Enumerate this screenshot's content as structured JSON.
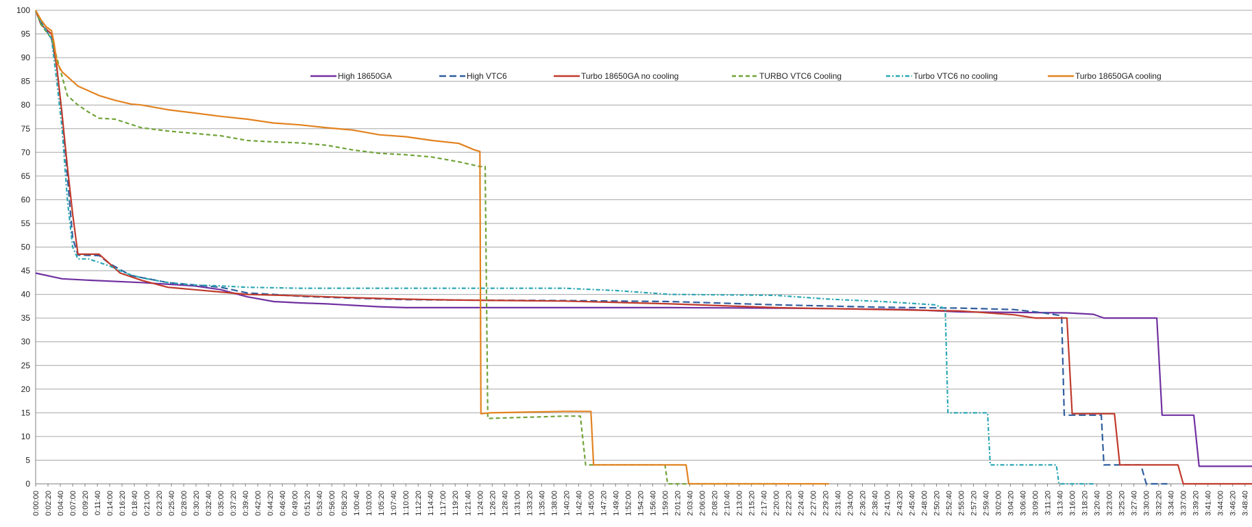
{
  "chart_data": {
    "type": "line",
    "title": "",
    "xlabel": "",
    "ylabel": "",
    "grid": true,
    "legend_position": "top-center",
    "ylim": [
      0,
      100
    ],
    "y_ticks": [
      0,
      5,
      10,
      15,
      20,
      25,
      30,
      35,
      40,
      45,
      50,
      55,
      60,
      65,
      70,
      75,
      80,
      85,
      90,
      95,
      100
    ],
    "x_unit": "minutes",
    "xlim": [
      0,
      230
    ],
    "x_tick_labels": [
      "0:00:00",
      "0:02:20",
      "0:04:40",
      "0:07:00",
      "0:09:20",
      "0:11:40",
      "0:14:00",
      "0:16:20",
      "0:18:40",
      "0:21:00",
      "0:23:20",
      "0:25:40",
      "0:28:00",
      "0:30:20",
      "0:32:40",
      "0:35:00",
      "0:37:20",
      "0:39:40",
      "0:42:00",
      "0:44:20",
      "0:46:40",
      "0:49:00",
      "0:51:20",
      "0:53:40",
      "0:56:00",
      "0:58:20",
      "1:00:40",
      "1:03:00",
      "1:05:20",
      "1:07:40",
      "1:10:00",
      "1:12:20",
      "1:14:40",
      "1:17:00",
      "1:19:20",
      "1:21:40",
      "1:24:00",
      "1:26:20",
      "1:28:40",
      "1:31:00",
      "1:33:20",
      "1:35:40",
      "1:38:00",
      "1:40:20",
      "1:42:40",
      "1:45:00",
      "1:47:20",
      "1:49:40",
      "1:52:00",
      "1:54:20",
      "1:56:40",
      "1:59:00",
      "2:01:20",
      "2:03:40",
      "2:06:00",
      "2:08:20",
      "2:10:40",
      "2:13:00",
      "2:15:20",
      "2:17:40",
      "2:20:00",
      "2:22:20",
      "2:24:40",
      "2:27:00",
      "2:29:20",
      "2:31:40",
      "2:34:00",
      "2:36:20",
      "2:38:40",
      "2:41:00",
      "2:43:20",
      "2:45:40",
      "2:48:00",
      "2:50:20",
      "2:52:40",
      "2:55:00",
      "2:57:20",
      "2:59:40",
      "3:02:00",
      "3:04:20",
      "3:06:40",
      "3:09:00",
      "3:11:20",
      "3:13:40",
      "3:16:00",
      "3:18:20",
      "3:20:40",
      "3:23:00",
      "3:25:20",
      "3:27:40",
      "3:30:00",
      "3:32:20",
      "3:34:40",
      "3:37:00",
      "3:39:20",
      "3:41:40",
      "3:44:00",
      "3:46:20",
      "3:48:40"
    ],
    "series": [
      {
        "name": "High 18650GA",
        "color": "#7030a0",
        "dash": "solid",
        "points": [
          [
            0,
            44.5
          ],
          [
            5,
            43.3
          ],
          [
            10,
            43
          ],
          [
            20,
            42.5
          ],
          [
            30,
            41.8
          ],
          [
            35,
            41
          ],
          [
            40,
            39.5
          ],
          [
            45,
            38.5
          ],
          [
            50,
            38.2
          ],
          [
            55,
            38
          ],
          [
            60,
            37.7
          ],
          [
            65,
            37.4
          ],
          [
            70,
            37.2
          ],
          [
            80,
            37.2
          ],
          [
            100,
            37.2
          ],
          [
            120,
            37.2
          ],
          [
            140,
            37.1
          ],
          [
            150,
            37
          ],
          [
            165,
            36.8
          ],
          [
            175,
            36.3
          ],
          [
            185,
            36.2
          ],
          [
            195,
            36.1
          ],
          [
            200,
            35.8
          ],
          [
            202,
            35
          ],
          [
            212,
            35
          ],
          [
            213,
            14.5
          ],
          [
            219,
            14.5
          ],
          [
            220,
            3.7
          ],
          [
            230,
            3.7
          ]
        ]
      },
      {
        "name": "High VTC6",
        "color": "#2e5d9e",
        "dash": "long",
        "points": [
          [
            0,
            100
          ],
          [
            1,
            97.5
          ],
          [
            3,
            94
          ],
          [
            4,
            88
          ],
          [
            5,
            78
          ],
          [
            6,
            65
          ],
          [
            7,
            52
          ],
          [
            8,
            48.3
          ],
          [
            12,
            48.2
          ],
          [
            14,
            46.5
          ],
          [
            18,
            44
          ],
          [
            25,
            42.5
          ],
          [
            35,
            41.5
          ],
          [
            40,
            40.3
          ],
          [
            45,
            40
          ],
          [
            50,
            39.6
          ],
          [
            60,
            39.2
          ],
          [
            70,
            38.9
          ],
          [
            80,
            38.8
          ],
          [
            100,
            38.7
          ],
          [
            120,
            38.5
          ],
          [
            140,
            37.8
          ],
          [
            160,
            37.3
          ],
          [
            175,
            37.1
          ],
          [
            185,
            36.8
          ],
          [
            190,
            36.2
          ],
          [
            194,
            35.5
          ],
          [
            194.5,
            14.5
          ],
          [
            201.5,
            14.5
          ],
          [
            202,
            4
          ],
          [
            209,
            4
          ],
          [
            210,
            0
          ],
          [
            214,
            0
          ]
        ]
      },
      {
        "name": "Turbo 18650GA no cooling",
        "color": "#c0392b",
        "dash": "solid",
        "points": [
          [
            0,
            100
          ],
          [
            1,
            97
          ],
          [
            3,
            95
          ],
          [
            4,
            88
          ],
          [
            5,
            78
          ],
          [
            6,
            67
          ],
          [
            7,
            57
          ],
          [
            8,
            48.5
          ],
          [
            12,
            48.5
          ],
          [
            14,
            46.5
          ],
          [
            16,
            44.5
          ],
          [
            20,
            43
          ],
          [
            25,
            41.5
          ],
          [
            30,
            41
          ],
          [
            35,
            40.5
          ],
          [
            40,
            40
          ],
          [
            50,
            39.7
          ],
          [
            60,
            39.3
          ],
          [
            70,
            39
          ],
          [
            80,
            38.8
          ],
          [
            100,
            38.6
          ],
          [
            120,
            38
          ],
          [
            140,
            37.2
          ],
          [
            160,
            36.8
          ],
          [
            175,
            36.5
          ],
          [
            185,
            35.7
          ],
          [
            189,
            35
          ],
          [
            195,
            35
          ],
          [
            196,
            14.8
          ],
          [
            204,
            14.8
          ],
          [
            205,
            4
          ],
          [
            216,
            4
          ],
          [
            217,
            0
          ],
          [
            230,
            0
          ]
        ]
      },
      {
        "name": "TURBO VTC6 Cooling",
        "color": "#70a338",
        "dash": "dashed",
        "points": [
          [
            0,
            100
          ],
          [
            1,
            97
          ],
          [
            3,
            94
          ],
          [
            4,
            90
          ],
          [
            5,
            86
          ],
          [
            6,
            82
          ],
          [
            8,
            80
          ],
          [
            10,
            78.5
          ],
          [
            12,
            77.2
          ],
          [
            15,
            77
          ],
          [
            20,
            75.2
          ],
          [
            25,
            74.5
          ],
          [
            30,
            74
          ],
          [
            35,
            73.5
          ],
          [
            40,
            72.5
          ],
          [
            45,
            72.2
          ],
          [
            50,
            72
          ],
          [
            55,
            71.5
          ],
          [
            60,
            70.5
          ],
          [
            65,
            69.8
          ],
          [
            70,
            69.5
          ],
          [
            75,
            69
          ],
          [
            80,
            68
          ],
          [
            84,
            67
          ],
          [
            85,
            67
          ],
          [
            85.5,
            13.8
          ],
          [
            100,
            14.3
          ],
          [
            103,
            14.3
          ],
          [
            104,
            4
          ],
          [
            119,
            4
          ],
          [
            119.5,
            0
          ],
          [
            140,
            0
          ]
        ]
      },
      {
        "name": "Turbo VTC6 no cooling",
        "color": "#2aa6b3",
        "dash": "dashdot",
        "points": [
          [
            0,
            100
          ],
          [
            1,
            97.5
          ],
          [
            3,
            94
          ],
          [
            4,
            85
          ],
          [
            5,
            75
          ],
          [
            6,
            60
          ],
          [
            7,
            50
          ],
          [
            8,
            47.5
          ],
          [
            10,
            47.5
          ],
          [
            14,
            46
          ],
          [
            17,
            44.5
          ],
          [
            20,
            43.5
          ],
          [
            25,
            42.5
          ],
          [
            30,
            42
          ],
          [
            35,
            41.8
          ],
          [
            40,
            41.5
          ],
          [
            50,
            41.3
          ],
          [
            60,
            41.3
          ],
          [
            80,
            41.3
          ],
          [
            100,
            41.3
          ],
          [
            110,
            40.8
          ],
          [
            120,
            40
          ],
          [
            140,
            39.8
          ],
          [
            150,
            39
          ],
          [
            160,
            38.5
          ],
          [
            170,
            37.8
          ],
          [
            172,
            37
          ],
          [
            172.5,
            15
          ],
          [
            180,
            15
          ],
          [
            180.5,
            4
          ],
          [
            193,
            4
          ],
          [
            193.5,
            0
          ],
          [
            200,
            0
          ]
        ]
      },
      {
        "name": "Turbo 18650GA cooling",
        "color": "#e2821f",
        "dash": "solid",
        "points": [
          [
            0,
            100
          ],
          [
            1,
            98
          ],
          [
            2,
            96.5
          ],
          [
            3,
            95.7
          ],
          [
            3.5,
            93
          ],
          [
            4,
            89
          ],
          [
            5,
            87
          ],
          [
            8,
            84
          ],
          [
            10,
            83
          ],
          [
            12,
            82
          ],
          [
            15,
            81
          ],
          [
            18,
            80.2
          ],
          [
            20,
            80
          ],
          [
            25,
            79
          ],
          [
            30,
            78.3
          ],
          [
            35,
            77.6
          ],
          [
            40,
            77
          ],
          [
            45,
            76.2
          ],
          [
            50,
            75.8
          ],
          [
            55,
            75.2
          ],
          [
            60,
            74.7
          ],
          [
            65,
            73.7
          ],
          [
            70,
            73.3
          ],
          [
            75,
            72.5
          ],
          [
            80,
            71.9
          ],
          [
            83,
            70.5
          ],
          [
            84,
            70.2
          ],
          [
            84.2,
            14.8
          ],
          [
            86,
            15
          ],
          [
            100,
            15.3
          ],
          [
            105,
            15.3
          ],
          [
            105.5,
            4
          ],
          [
            123,
            4
          ],
          [
            123.5,
            0
          ],
          [
            150,
            0
          ]
        ]
      }
    ]
  }
}
